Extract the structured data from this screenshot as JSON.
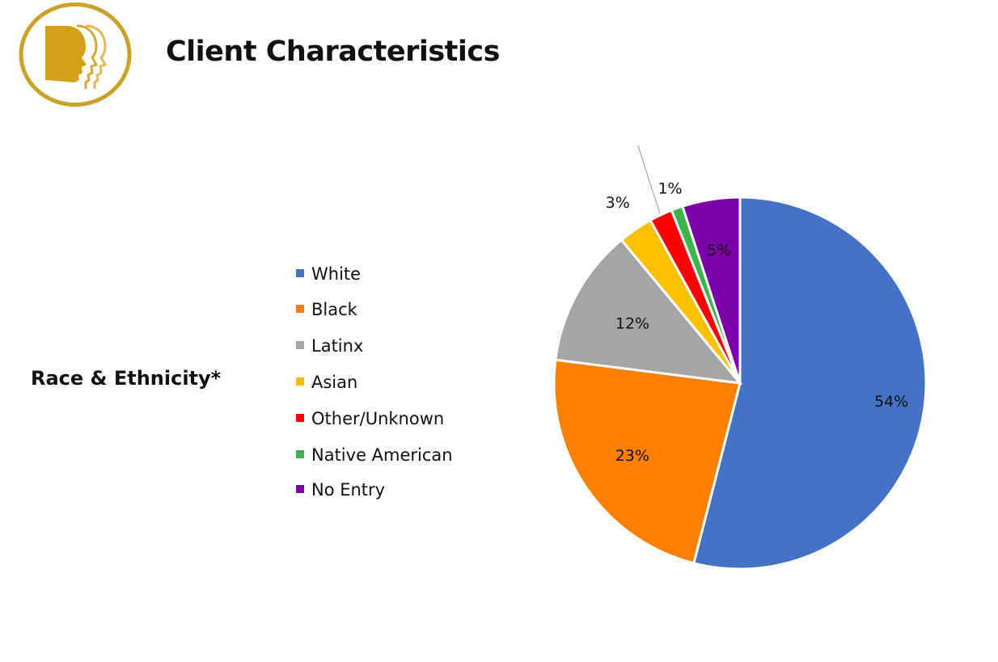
{
  "header": {
    "title": "Client Characteristics"
  },
  "section": {
    "label": "Race & Ethnicity*"
  },
  "chart_data": {
    "type": "pie",
    "title": "",
    "legend_position": "left",
    "slices": [
      {
        "label": "White",
        "value": 54,
        "display": "54%",
        "color": "#4472C4"
      },
      {
        "label": "Black",
        "value": 23,
        "display": "23%",
        "color": "#FF7F00"
      },
      {
        "label": "Latinx",
        "value": 12,
        "display": "12%",
        "color": "#A5A5A5"
      },
      {
        "label": "Asian",
        "value": 3,
        "display": "3%",
        "color": "#FFC000"
      },
      {
        "label": "Other/Unknown",
        "value": 2,
        "display": "2%",
        "color": "#FF0000"
      },
      {
        "label": "Native American",
        "value": 1,
        "display": "1%",
        "color": "#3CB44B"
      },
      {
        "label": "No Entry",
        "value": 5,
        "display": "5%",
        "color": "#7B00A8"
      }
    ]
  },
  "colors": {
    "logo_gold": "#D4A017",
    "logo_ring": "#C9A227"
  }
}
